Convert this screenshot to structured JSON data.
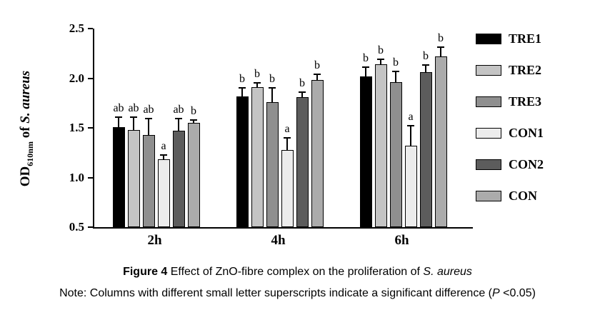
{
  "chart_data": {
    "type": "bar",
    "title": "",
    "ylabel": "OD610nm of S. aureus",
    "ylabel_parts": {
      "od": "OD",
      "sub": "610nm",
      "rest": " of ",
      "species": "S. aureus"
    },
    "categories": [
      "2h",
      "4h",
      "6h"
    ],
    "ylim": [
      0.5,
      2.5
    ],
    "yticks": [
      "0.5",
      "1.0",
      "1.5",
      "2.0",
      "2.5"
    ],
    "grid": false,
    "legend_position": "right",
    "error_bars": "sd-upper",
    "series": [
      {
        "name": "TRE1",
        "color": "#000000",
        "values": [
          1.51,
          1.82,
          2.02
        ],
        "errors": [
          0.1,
          0.08,
          0.09
        ],
        "letters": [
          "ab",
          "b",
          "b"
        ]
      },
      {
        "name": "TRE2",
        "color": "#c4c4c4",
        "values": [
          1.48,
          1.91,
          2.14
        ],
        "errors": [
          0.13,
          0.04,
          0.05
        ],
        "letters": [
          "ab",
          "b",
          "b"
        ]
      },
      {
        "name": "TRE3",
        "color": "#8f8f8f",
        "values": [
          1.43,
          1.76,
          1.96
        ],
        "errors": [
          0.16,
          0.14,
          0.11
        ],
        "letters": [
          "ab",
          "b",
          "b"
        ]
      },
      {
        "name": "CON1",
        "color": "#ececec",
        "values": [
          1.18,
          1.28,
          1.32
        ],
        "errors": [
          0.05,
          0.12,
          0.2
        ],
        "letters": [
          "a",
          "a",
          "a"
        ]
      },
      {
        "name": "CON2",
        "color": "#5c5c5c",
        "values": [
          1.47,
          1.81,
          2.06
        ],
        "errors": [
          0.12,
          0.05,
          0.07
        ],
        "letters": [
          "ab",
          "b",
          "b"
        ]
      },
      {
        "name": "CON",
        "color": "#ababab",
        "values": [
          1.55,
          1.98,
          2.22
        ],
        "errors": [
          0.03,
          0.06,
          0.09
        ],
        "letters": [
          "b",
          "b",
          "b"
        ]
      }
    ]
  },
  "caption": {
    "fig_label": "Figure 4",
    "text": " Effect of ZnO-fibre complex on the proliferation of ",
    "species": "S. aureus"
  },
  "note": {
    "text1": "Note: Columns with different small letter superscripts indicate a significant difference (",
    "p": "P",
    "text2": " <0.05)"
  }
}
